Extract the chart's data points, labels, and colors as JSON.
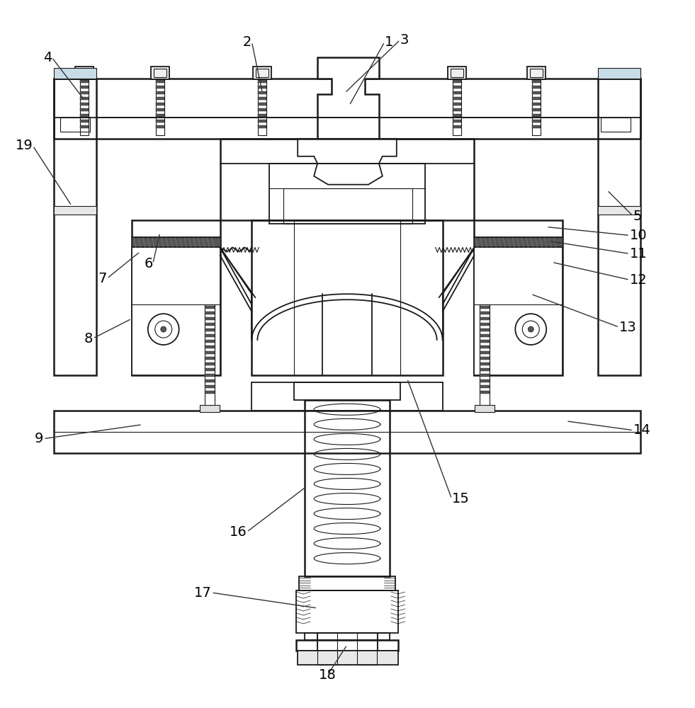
{
  "bg_color": "#ffffff",
  "lc": "#4a7a9b",
  "dc": "#1a1a1a",
  "figsize": [
    9.81,
    10.0
  ],
  "dpi": 100,
  "lw": 1.3,
  "lw2": 1.8,
  "lwt": 0.8,
  "label_fs": 14,
  "label_color": "#000000",
  "ann_color": "#333333"
}
